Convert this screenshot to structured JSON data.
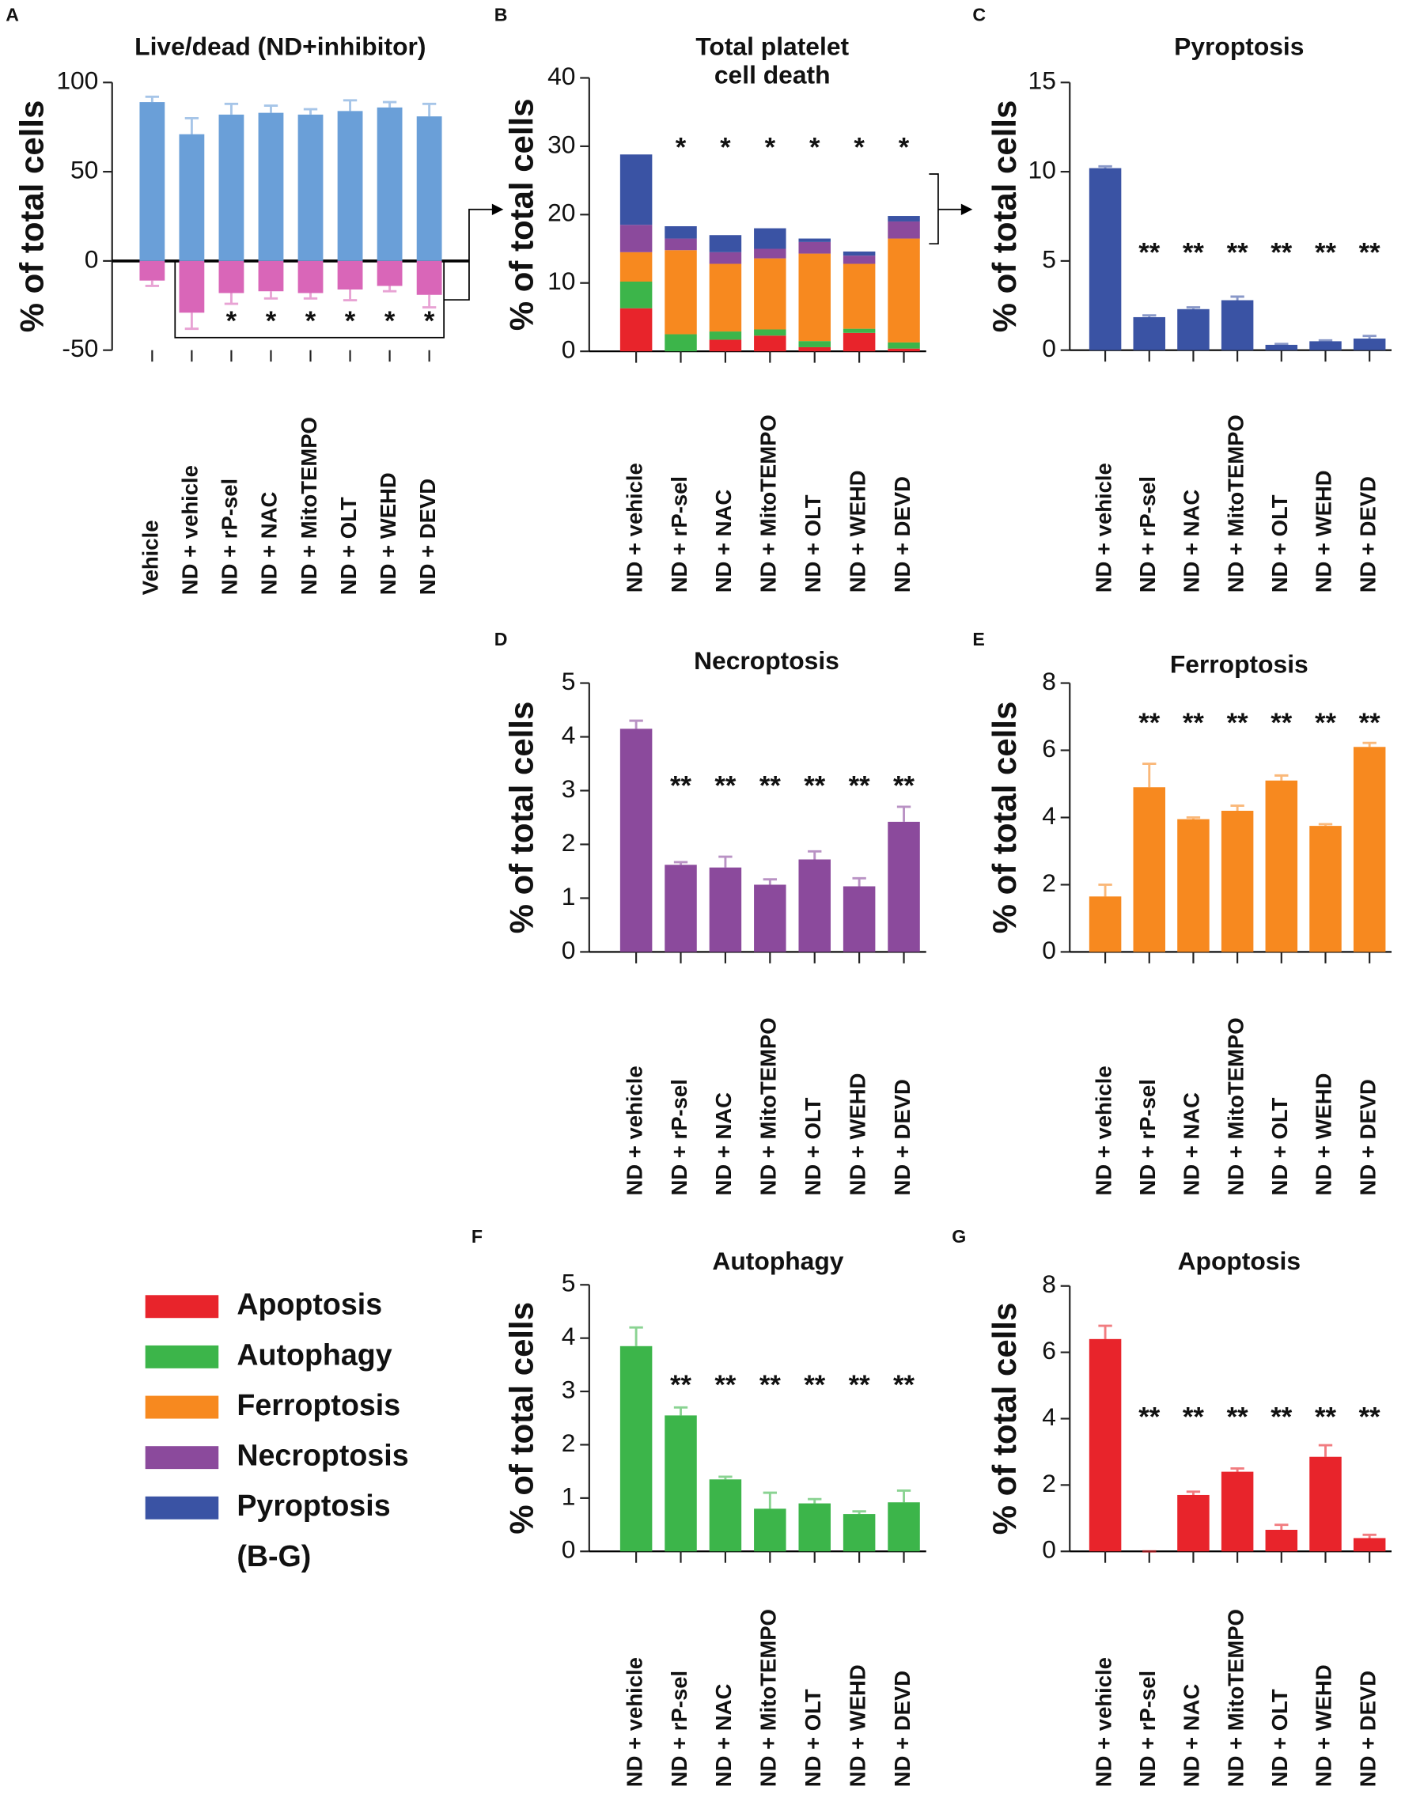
{
  "chart_data": [
    {
      "type": "bar",
      "panel": "A",
      "title": [
        "Live/dead (ND+inhibitor)"
      ],
      "ylabel": "% of total cells",
      "categories": [
        "Vehicle",
        "ND + vehicle",
        "ND + rP-sel",
        "ND + NAC",
        "ND + MitoTEMPO",
        "ND + OLT",
        "ND + WEHD",
        "ND + DEVD"
      ],
      "series": [
        {
          "color": "#6a9fd8",
          "values": [
            89,
            71,
            82,
            83,
            82,
            84,
            86,
            81
          ],
          "errors": [
            3,
            9,
            6,
            4,
            3,
            6,
            3,
            7
          ],
          "significance": [
            null,
            null,
            null,
            null,
            null,
            null,
            null,
            null
          ]
        },
        {
          "color": "#d966b8",
          "values": [
            -11,
            -29,
            -18,
            -17,
            -18,
            -16,
            -14,
            -19
          ],
          "errors": [
            3,
            9,
            6,
            4,
            3,
            6,
            3,
            7
          ],
          "significance": [
            null,
            null,
            "*",
            "*",
            "*",
            "*",
            "*",
            "*"
          ]
        }
      ],
      "ylim": [
        -50,
        100
      ],
      "yticks": [
        -50,
        0,
        50,
        100
      ]
    },
    {
      "type": "stacked_bar",
      "panel": "B",
      "title": [
        "Total platelet",
        "cell death"
      ],
      "ylabel": "% of total cells",
      "categories": [
        "ND + vehicle",
        "ND + rP-sel",
        "ND + NAC",
        "ND + MitoTEMPO",
        "ND + OLT",
        "ND + WEHD",
        "ND + DEVD"
      ],
      "series": [
        {
          "name": "Apoptosis",
          "color": "#e8242b",
          "values": [
            6.3,
            0,
            1.7,
            2.3,
            0.6,
            2.7,
            0.4
          ]
        },
        {
          "name": "Autophagy",
          "color": "#3cb54a",
          "values": [
            3.9,
            2.5,
            1.2,
            0.9,
            0.9,
            0.6,
            0.9
          ]
        },
        {
          "name": "Ferroptosis",
          "color": "#f7891f",
          "values": [
            4.3,
            12.3,
            9.9,
            10.4,
            12.8,
            9.5,
            15.2
          ]
        },
        {
          "name": "Necroptosis",
          "color": "#8b4a9c",
          "values": [
            4,
            1.7,
            1.7,
            1.4,
            1.7,
            1.2,
            2.5
          ]
        },
        {
          "name": "Pyroptosis",
          "color": "#3a53a4",
          "values": [
            10.3,
            1.8,
            2.5,
            3,
            0.5,
            0.6,
            0.8
          ]
        }
      ],
      "significance": [
        null,
        "*",
        "*",
        "*",
        "*",
        "*",
        "*"
      ],
      "legend_note": "(B-G)",
      "ylim": [
        0,
        40
      ],
      "yticks": [
        0,
        10,
        20,
        30,
        40
      ]
    },
    {
      "type": "bar",
      "panel": "C",
      "title": [
        "Pyroptosis"
      ],
      "ylabel": "% of total cells",
      "categories": [
        "ND + vehicle",
        "ND + rP-sel",
        "ND + NAC",
        "ND + MitoTEMPO",
        "ND + OLT",
        "ND + WEHD",
        "ND + DEVD"
      ],
      "series": [
        {
          "color": "#3a53a4",
          "values": [
            10.2,
            1.85,
            2.3,
            2.8,
            0.3,
            0.5,
            0.65
          ],
          "errors": [
            0.1,
            0.1,
            0.1,
            0.2,
            0.05,
            0.05,
            0.15
          ],
          "significance": [
            null,
            "**",
            "**",
            "**",
            "**",
            "**",
            "**"
          ]
        }
      ],
      "ylim": [
        0,
        15
      ],
      "yticks": [
        0,
        5,
        10,
        15
      ]
    },
    {
      "type": "bar",
      "panel": "D",
      "title": [
        "Necroptosis"
      ],
      "ylabel": "% of total cells",
      "categories": [
        "ND + vehicle",
        "ND + rP-sel",
        "ND + NAC",
        "ND + MitoTEMPO",
        "ND + OLT",
        "ND + WEHD",
        "ND + DEVD"
      ],
      "series": [
        {
          "color": "#8b4a9c",
          "values": [
            4.15,
            1.62,
            1.57,
            1.25,
            1.72,
            1.22,
            2.42
          ],
          "errors": [
            0.15,
            0.05,
            0.2,
            0.1,
            0.15,
            0.15,
            0.28
          ],
          "significance": [
            null,
            "**",
            "**",
            "**",
            "**",
            "**",
            "**"
          ]
        }
      ],
      "ylim": [
        0,
        5
      ],
      "yticks": [
        0,
        1,
        2,
        3,
        4,
        5
      ]
    },
    {
      "type": "bar",
      "panel": "E",
      "title": [
        "Ferroptosis"
      ],
      "ylabel": "% of total cells",
      "categories": [
        "ND + vehicle",
        "ND + rP-sel",
        "ND + NAC",
        "ND + MitoTEMPO",
        "ND + OLT",
        "ND + WEHD",
        "ND + DEVD"
      ],
      "series": [
        {
          "color": "#f7891f",
          "values": [
            1.65,
            4.9,
            3.95,
            4.2,
            5.1,
            3.75,
            6.1
          ],
          "errors": [
            0.35,
            0.7,
            0.05,
            0.15,
            0.15,
            0.05,
            0.12
          ],
          "significance": [
            null,
            "**",
            "**",
            "**",
            "**",
            "**",
            "**"
          ]
        }
      ],
      "ylim": [
        0,
        8
      ],
      "yticks": [
        0,
        2,
        4,
        6,
        8
      ]
    },
    {
      "type": "bar",
      "panel": "F",
      "title": [
        "Autophagy"
      ],
      "ylabel": "% of total cells",
      "categories": [
        "ND + vehicle",
        "ND + rP-sel",
        "ND + NAC",
        "ND + MitoTEMPO",
        "ND + OLT",
        "ND + WEHD",
        "ND + DEVD"
      ],
      "series": [
        {
          "color": "#3cb54a",
          "values": [
            3.85,
            2.55,
            1.35,
            0.8,
            0.9,
            0.7,
            0.92
          ],
          "errors": [
            0.35,
            0.15,
            0.05,
            0.3,
            0.08,
            0.05,
            0.22
          ],
          "significance": [
            null,
            "**",
            "**",
            "**",
            "**",
            "**",
            "**"
          ]
        }
      ],
      "ylim": [
        0,
        5
      ],
      "yticks": [
        0,
        1,
        2,
        3,
        4,
        5
      ]
    },
    {
      "type": "bar",
      "panel": "G",
      "title": [
        "Apoptosis"
      ],
      "ylabel": "% of total cells",
      "categories": [
        "ND + vehicle",
        "ND + rP-sel",
        "ND + NAC",
        "ND + MitoTEMPO",
        "ND + OLT",
        "ND + WEHD",
        "ND + DEVD"
      ],
      "series": [
        {
          "color": "#e8242b",
          "values": [
            6.4,
            0,
            1.7,
            2.4,
            0.65,
            2.85,
            0.4
          ],
          "errors": [
            0.4,
            0,
            0.1,
            0.1,
            0.15,
            0.35,
            0.1
          ],
          "significance": [
            null,
            "**",
            "**",
            "**",
            "**",
            "**",
            "**"
          ]
        }
      ],
      "ylim": [
        0,
        8
      ],
      "yticks": [
        0,
        2,
        4,
        6,
        8
      ]
    }
  ]
}
